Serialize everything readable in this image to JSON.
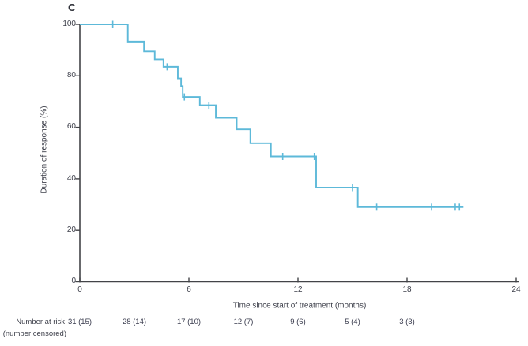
{
  "figure": {
    "panel_label": "C"
  },
  "chart_data": {
    "type": "line",
    "subtype": "kaplan-meier-step-curve",
    "title": "C",
    "xlabel": "Time since start of treatment (months)",
    "ylabel": "Duration of response (%)",
    "xlim": [
      0,
      24
    ],
    "ylim": [
      0,
      100
    ],
    "xticks": [
      "0",
      "6",
      "12",
      "18",
      "24"
    ],
    "yticks": [
      "0",
      "20",
      "40",
      "60",
      "80",
      "100"
    ],
    "grid": false,
    "legend": "none",
    "curve_color": "#5db9d9",
    "axis_color": "#434448",
    "text_color": "#3e404b",
    "steps": [
      [
        0,
        100
      ],
      [
        2.64,
        93.3
      ],
      [
        3.53,
        89.5
      ],
      [
        4.12,
        86.4
      ],
      [
        4.6,
        83.5
      ],
      [
        5.39,
        79.0
      ],
      [
        5.57,
        76.0
      ],
      [
        5.66,
        71.8
      ],
      [
        6.6,
        68.6
      ],
      [
        7.48,
        63.7
      ],
      [
        8.63,
        59.2
      ],
      [
        9.38,
        53.8
      ],
      [
        10.51,
        48.7
      ],
      [
        13.0,
        36.6
      ],
      [
        15.29,
        29.0
      ]
    ],
    "end_time": 21.1,
    "censor_marks": [
      [
        1.81,
        100
      ],
      [
        4.8,
        83.5
      ],
      [
        5.75,
        71.8
      ],
      [
        7.1,
        68.6
      ],
      [
        11.16,
        48.7
      ],
      [
        12.9,
        48.7
      ],
      [
        15.0,
        36.6
      ],
      [
        16.33,
        29.0
      ],
      [
        19.35,
        29.0
      ],
      [
        20.65,
        29.0
      ],
      [
        20.88,
        29.0
      ]
    ]
  },
  "risk_table": {
    "label_line1": "Number at risk",
    "label_line2": "(number censored)",
    "times": [
      0,
      3,
      6,
      9,
      12,
      15,
      18,
      21,
      24
    ],
    "values": [
      "31 (15)",
      "28 (14)",
      "17 (10)",
      "12 (7)",
      "9 (6)",
      "5 (4)",
      "3 (3)",
      "··",
      "··"
    ]
  }
}
